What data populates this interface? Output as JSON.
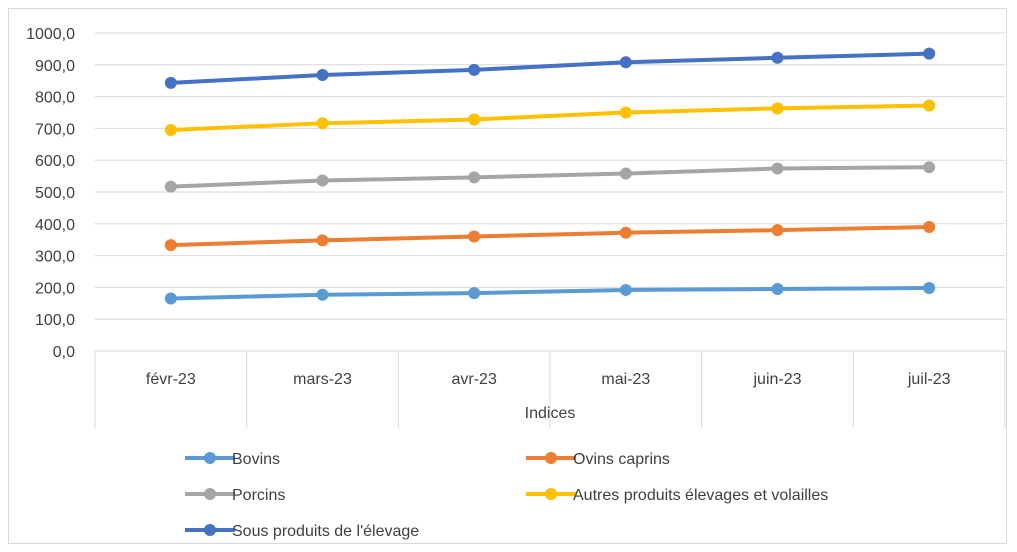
{
  "chart_data": {
    "type": "line",
    "title": "",
    "xlabel": "Indices",
    "ylabel": "",
    "categories": [
      "févr-23",
      "mars-23",
      "avr-23",
      "mai-23",
      "juin-23",
      "juil-23"
    ],
    "ylim": [
      0,
      1000
    ],
    "yticks": [
      "0,0",
      "100,0",
      "200,0",
      "300,0",
      "400,0",
      "500,0",
      "600,0",
      "700,0",
      "800,0",
      "900,0",
      "1000,0"
    ],
    "grid": true,
    "legend_position": "bottom",
    "series": [
      {
        "name": "Bovins",
        "color": "#5b9bd5",
        "values": [
          165,
          177,
          182,
          192,
          195,
          198
        ]
      },
      {
        "name": "Ovins caprins",
        "color": "#ed7d31",
        "values": [
          333,
          348,
          360,
          372,
          380,
          390
        ]
      },
      {
        "name": "Porcins",
        "color": "#a5a5a5",
        "values": [
          517,
          536,
          546,
          558,
          574,
          578
        ]
      },
      {
        "name": "Autres produits élevages et volailles",
        "color": "#ffc000",
        "values": [
          695,
          716,
          728,
          750,
          763,
          772
        ]
      },
      {
        "name": "Sous produits de l'élevage",
        "color": "#4472c4",
        "values": [
          843,
          868,
          884,
          908,
          922,
          935
        ]
      }
    ]
  }
}
